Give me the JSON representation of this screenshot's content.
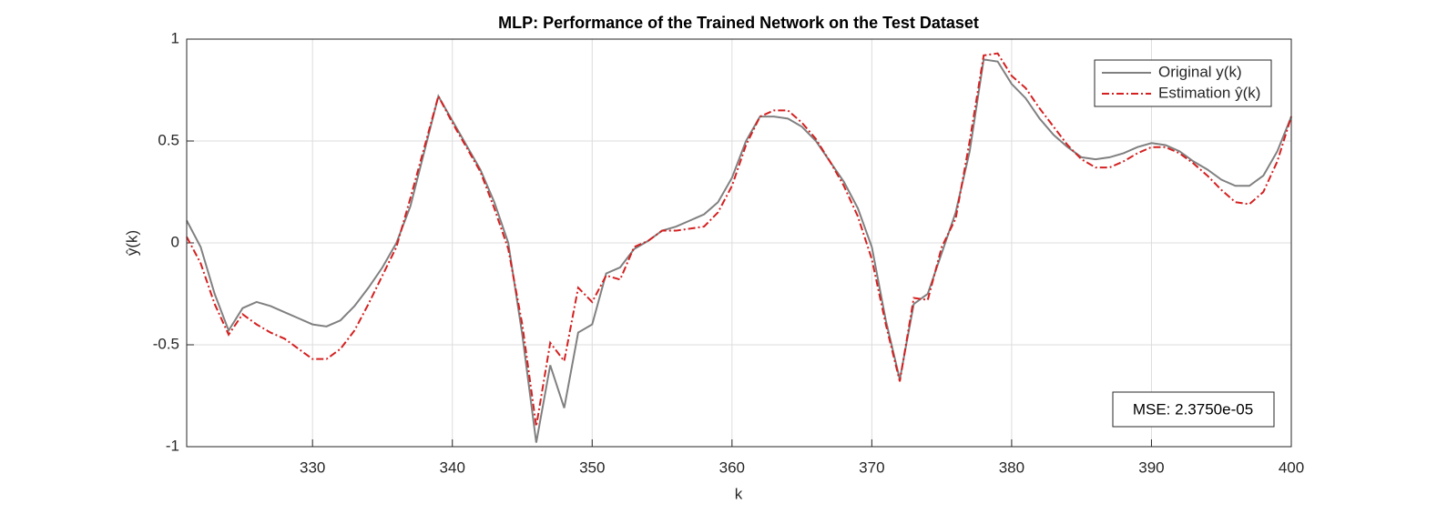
{
  "chart_data": {
    "type": "line",
    "title": "MLP: Performance of the Trained Network on the Test Dataset",
    "xlabel": "k",
    "ylabel": "ŷ(k)",
    "annotation": "MSE: 2.3750e-05",
    "x": [
      321,
      322,
      323,
      324,
      325,
      326,
      327,
      328,
      329,
      330,
      331,
      332,
      333,
      334,
      335,
      336,
      337,
      338,
      339,
      340,
      341,
      342,
      343,
      344,
      345,
      346,
      347,
      348,
      349,
      350,
      351,
      352,
      353,
      354,
      355,
      356,
      357,
      358,
      359,
      360,
      361,
      362,
      363,
      364,
      365,
      366,
      367,
      368,
      369,
      370,
      371,
      372,
      373,
      374,
      375,
      376,
      377,
      378,
      379,
      380,
      381,
      382,
      383,
      384,
      385,
      386,
      387,
      388,
      389,
      390,
      391,
      392,
      393,
      394,
      395,
      396,
      397,
      398,
      399,
      400
    ],
    "series": [
      {
        "name": "Original y(k)",
        "color": "#808080",
        "dash": "solid",
        "values": [
          0.11,
          -0.02,
          -0.25,
          -0.43,
          -0.32,
          -0.29,
          -0.31,
          -0.34,
          -0.37,
          -0.4,
          -0.41,
          -0.38,
          -0.31,
          -0.22,
          -0.12,
          0.0,
          0.18,
          0.45,
          0.72,
          0.6,
          0.48,
          0.36,
          0.2,
          0.0,
          -0.45,
          -0.98,
          -0.6,
          -0.81,
          -0.44,
          -0.4,
          -0.15,
          -0.12,
          -0.03,
          0.01,
          0.06,
          0.08,
          0.11,
          0.14,
          0.2,
          0.32,
          0.5,
          0.62,
          0.62,
          0.61,
          0.57,
          0.5,
          0.4,
          0.3,
          0.17,
          -0.02,
          -0.38,
          -0.67,
          -0.3,
          -0.25,
          -0.05,
          0.15,
          0.45,
          0.9,
          0.89,
          0.78,
          0.71,
          0.61,
          0.53,
          0.47,
          0.42,
          0.41,
          0.42,
          0.44,
          0.47,
          0.49,
          0.48,
          0.45,
          0.4,
          0.36,
          0.31,
          0.28,
          0.28,
          0.33,
          0.45,
          0.62
        ]
      },
      {
        "name": "Estimation ŷ(k)",
        "color": "#d42020",
        "dash": "dashdot",
        "values": [
          0.03,
          -0.1,
          -0.3,
          -0.45,
          -0.35,
          -0.4,
          -0.44,
          -0.47,
          -0.52,
          -0.57,
          -0.57,
          -0.52,
          -0.43,
          -0.3,
          -0.16,
          -0.02,
          0.22,
          0.47,
          0.72,
          0.59,
          0.47,
          0.35,
          0.17,
          -0.03,
          -0.4,
          -0.9,
          -0.49,
          -0.58,
          -0.22,
          -0.29,
          -0.16,
          -0.18,
          -0.02,
          0.01,
          0.06,
          0.06,
          0.07,
          0.08,
          0.15,
          0.28,
          0.48,
          0.62,
          0.65,
          0.65,
          0.59,
          0.51,
          0.4,
          0.28,
          0.13,
          -0.08,
          -0.4,
          -0.68,
          -0.27,
          -0.28,
          -0.02,
          0.12,
          0.5,
          0.92,
          0.93,
          0.82,
          0.76,
          0.66,
          0.57,
          0.48,
          0.41,
          0.37,
          0.37,
          0.4,
          0.44,
          0.47,
          0.47,
          0.44,
          0.39,
          0.33,
          0.26,
          0.2,
          0.19,
          0.25,
          0.4,
          0.62
        ]
      }
    ],
    "xlim": [
      321,
      400
    ],
    "xticks": [
      330,
      340,
      350,
      360,
      370,
      380,
      390,
      400
    ],
    "ylim": [
      -1,
      1
    ],
    "yticks": [
      -1,
      -0.5,
      0,
      0.5,
      1
    ],
    "grid": true,
    "legend": "northeast"
  }
}
